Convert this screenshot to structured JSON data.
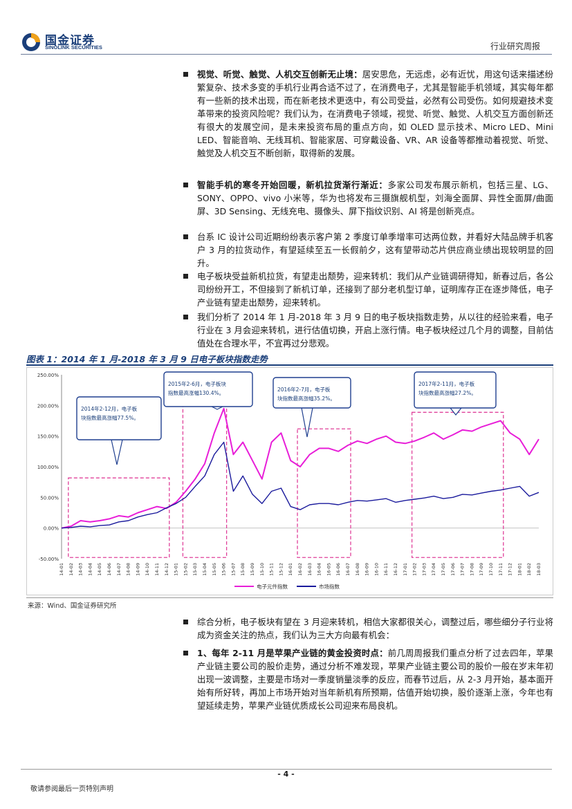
{
  "header": {
    "logo_cn": "国金证券",
    "logo_en": "SINOLINK SECURITIES",
    "report_type": "行业研究周报"
  },
  "paragraphs": [
    {
      "lead": "视觉、听觉、触觉、人机交互创新无止境：",
      "body": "居安思危，无远虑，必有近忧，用这句话来描述纷繁复杂、技术多变的手机行业再合适不过了，在消费电子，尤其是智能手机领域，其实每年都有一些新的技术出现，而在新老技术更迭中，有公司受益，必然有公司受伤。如何规避技术变革带来的投资风险呢？我们认为，在消费电子领域，视觉、听觉、触觉、人机交互方面创新还有很大的发展空间，是未来投资布局的重点方向，如 OLED 显示技术、Micro LED、Mini LED、智能音响、无线耳机、智能家居、可穿戴设备、VR、AR 设备等都推动着视觉、听觉、触觉及人机交互不断创新，取得新的发展。"
    },
    {
      "lead": "智能手机的寒冬开始回暖，新机拉货渐行渐近：",
      "body": "多家公司发布展示新机，包括三星、LG、SONY、OPPO、vivo 小米等，华为也将发布三摄旗舰机型，刘海全面屏、异性全面屏/曲面屏、3D Sensing、无线充电、摄像头、屏下指纹识别、AI 将是创新亮点。"
    },
    {
      "lead": "",
      "body": "台系 IC 设计公司近期纷纷表示客户第 2 季度订单季增率可达两位数，并看好大陆品牌手机客户 3 月的拉货动作，有望延续至五一长假前夕，这有望带动芯片供应商业绩出现较明显的回升。"
    },
    {
      "lead": "",
      "body": "电子板块受益新机拉货，有望走出颓势，迎来转机：我们从产业链调研得知，新春过后，各公司纷纷开工，不但接到了新机订单，还接到了部分老机型订单，证明库存正在逐步降低，电子产业链有望走出颓势，迎来转机。"
    },
    {
      "lead": "",
      "body": "我们分析了 2014 年 1 月-2018 年 3 月 9 日的电子板块指数走势，从以往的经验来看，电子行业在 3 月会迎来转机，进行估值切换，开启上涨行情。电子板块经过几个月的调整，目前估值处在合理水平，不宜再过分悲观。"
    }
  ],
  "figure": {
    "title": "图表 1：2014 年 1 月-2018 年 3 月 9 日电子板块指数走势",
    "source": "来源：Wind、国金证券研究所"
  },
  "chart_data": {
    "type": "line",
    "title": "",
    "xlabel": "",
    "ylabel": "",
    "ylim": [
      -0.5,
      2.5
    ],
    "y_tick_labels": [
      "250.00%",
      "200.00%",
      "150.00%",
      "100.00%",
      "50.00%",
      "0.00%",
      "-50.00%"
    ],
    "x_tick_labels": [
      "14-01",
      "14-02",
      "14-03",
      "14-04",
      "14-05",
      "14-06",
      "14-07",
      "14-08",
      "14-09",
      "14-10",
      "14-11",
      "14-12",
      "15-01",
      "15-02",
      "15-03",
      "15-04",
      "15-05",
      "15-06",
      "15-07",
      "15-08",
      "15-09",
      "15-10",
      "15-11",
      "15-12",
      "16-01",
      "16-02",
      "16-03",
      "16-04",
      "16-05",
      "16-06",
      "16-07",
      "16-08",
      "16-09",
      "16-10",
      "16-11",
      "16-12",
      "17-01",
      "17-02",
      "17-03",
      "17-04",
      "17-05",
      "17-06",
      "17-07",
      "17-08",
      "17-09",
      "17-10",
      "17-11",
      "17-12",
      "18-01",
      "18-02",
      "18-03"
    ],
    "x_start": "2014-01",
    "grid": false,
    "legend_position": "bottom",
    "colors": {
      "electronics": "#e81ed8",
      "index": "#1a1a9c",
      "box": "#e0409a",
      "callout": "#1f3f8f"
    },
    "series": [
      {
        "name": "电子元件指数",
        "values": [
          0.0,
          0.03,
          0.12,
          0.1,
          0.12,
          0.15,
          0.2,
          0.18,
          0.25,
          0.3,
          0.35,
          0.32,
          0.42,
          0.6,
          0.8,
          1.05,
          1.55,
          1.95,
          1.2,
          1.4,
          1.1,
          0.8,
          1.4,
          1.55,
          1.1,
          1.0,
          1.2,
          1.3,
          1.3,
          1.25,
          1.35,
          1.42,
          1.38,
          1.45,
          1.5,
          1.4,
          1.38,
          1.42,
          1.48,
          1.55,
          1.45,
          1.52,
          1.6,
          1.58,
          1.65,
          1.7,
          1.75,
          1.55,
          1.45,
          1.2,
          1.45
        ]
      },
      {
        "name": "市场指数",
        "values": [
          0.0,
          0.01,
          0.03,
          0.02,
          0.04,
          0.05,
          0.1,
          0.12,
          0.18,
          0.22,
          0.25,
          0.33,
          0.4,
          0.5,
          0.68,
          0.85,
          1.2,
          1.4,
          0.6,
          0.85,
          0.55,
          0.4,
          0.6,
          0.65,
          0.35,
          0.3,
          0.38,
          0.4,
          0.4,
          0.38,
          0.42,
          0.45,
          0.44,
          0.46,
          0.48,
          0.42,
          0.45,
          0.47,
          0.49,
          0.52,
          0.48,
          0.5,
          0.55,
          0.54,
          0.57,
          0.6,
          0.62,
          0.65,
          0.68,
          0.52,
          0.58
        ]
      }
    ],
    "highlight_periods": [
      {
        "from": "2014-02",
        "to": "2014-12",
        "callout": "2014年2-12月，电子板块指数最高涨幅77.5%。"
      },
      {
        "from": "2015-02",
        "to": "2015-06",
        "callout": "2015年2-6月，电子板块指数最高涨幅130.4%。"
      },
      {
        "from": "2016-02",
        "to": "2016-07",
        "callout": "2016年2-7月，电子板块指数最高涨幅35.2%。"
      },
      {
        "from": "2017-02",
        "to": "2017-11",
        "callout": "2017年2-11月，电子板块指数最高涨幅27.2%。"
      }
    ]
  },
  "after_paragraphs": [
    {
      "lead": "",
      "body": "综合分析，电子板块有望在 3 月迎来转机，相信大家都很关心，调整过后，哪些细分子行业将成为资金关注的热点，我们认为三大方向最有机会："
    },
    {
      "lead": "1、每年 2-11 月是苹果产业链的黄金投资时点：",
      "body": "前几周周报我们重点分析了过去四年，苹果产业链主要公司的股价走势，通过分析不难发现，苹果产业链主要公司的股价一般在岁末年初出现一波调整，主要是市场对一季度销量淡季的反应，而春节过后，从 2-3 月开始，基本面开始有所好转，再加上市场开始对当年新机有所预期，估值开始切换，股价逐渐上涨，今年也有望延续走势，苹果产业链优质成长公司迎来布局良机。"
    }
  ],
  "footer": {
    "page_number": "- 4 -",
    "disclaimer": "敬请参阅最后一页特别声明"
  }
}
